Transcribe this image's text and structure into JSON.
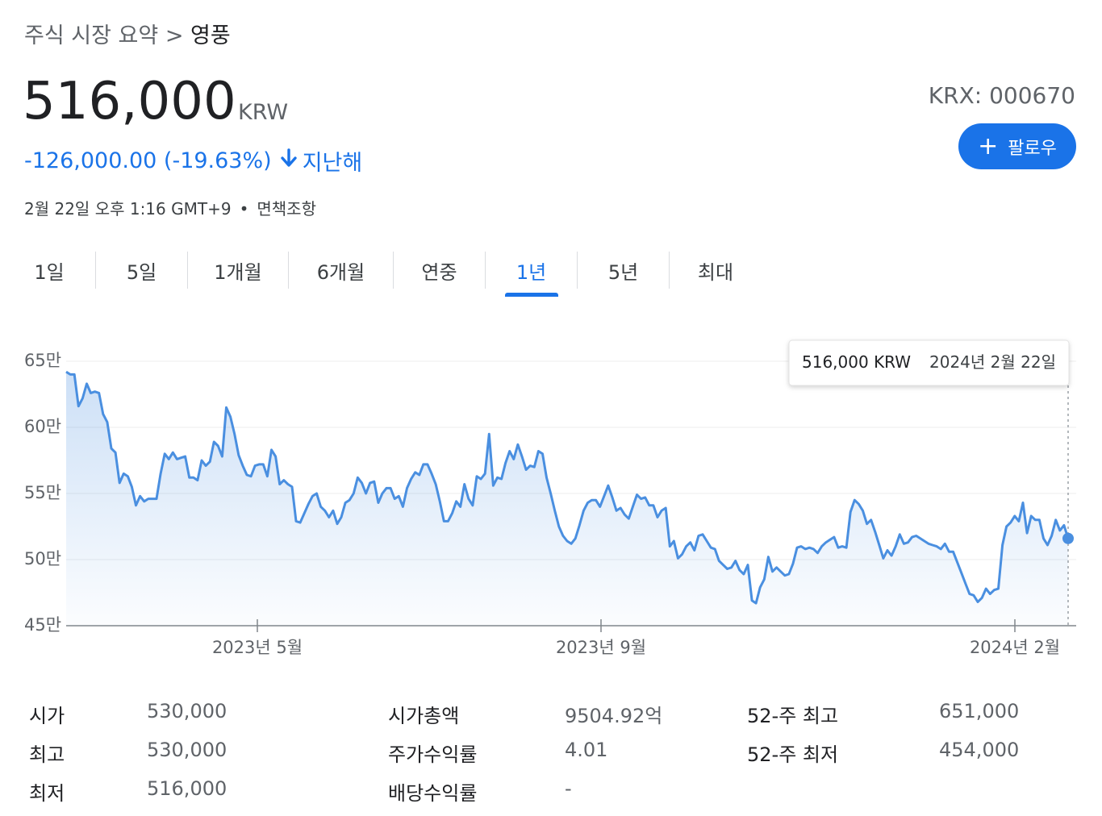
{
  "breadcrumb": {
    "parent": "주식 시장 요약",
    "separator": ">",
    "current": "영풍"
  },
  "quote": {
    "price": "516,000",
    "currency": "KRW",
    "change": "-126,000.00 (-19.63%)",
    "period": "지난해",
    "timestamp": "2월 22일 오후 1:16 GMT+9",
    "disclaimer": "면책조항",
    "exchange": "KRX: 000670"
  },
  "follow": {
    "label": "팔로우"
  },
  "tabs": [
    "1일",
    "5일",
    "1개월",
    "6개월",
    "연중",
    "1년",
    "5년",
    "최대"
  ],
  "active_tab": "1년",
  "colors": {
    "accent": "#1a73e8",
    "line": "#4a8fe0"
  },
  "chart_data": {
    "type": "area",
    "y_ticks": [
      "65만",
      "60만",
      "55만",
      "50만",
      "45만"
    ],
    "ylim": [
      450000,
      650000
    ],
    "x_ticks": [
      "2023년 5월",
      "2023년 9월",
      "2024년 2월"
    ],
    "tooltip": {
      "value": "516,000 KRW",
      "date": "2024년 2월 22일"
    },
    "values": [
      642000,
      640000,
      640000,
      616000,
      622000,
      633000,
      626000,
      627000,
      626000,
      610000,
      604000,
      584000,
      581000,
      558000,
      565000,
      563000,
      555000,
      541000,
      548000,
      544000,
      546000,
      546000,
      546000,
      565000,
      580000,
      576000,
      581000,
      576000,
      577000,
      578000,
      562000,
      562000,
      560000,
      575000,
      571000,
      574000,
      589000,
      586000,
      578000,
      615000,
      608000,
      595000,
      579000,
      571000,
      564000,
      563000,
      571000,
      572000,
      572000,
      563000,
      583000,
      578000,
      557000,
      560000,
      557000,
      555000,
      529000,
      528000,
      535000,
      542000,
      548000,
      550000,
      540000,
      537000,
      532000,
      537000,
      527000,
      532000,
      543000,
      545000,
      550000,
      562000,
      558000,
      550000,
      558000,
      559000,
      543000,
      550000,
      554000,
      554000,
      546000,
      548000,
      540000,
      554000,
      561000,
      566000,
      564000,
      572000,
      572000,
      565000,
      557000,
      544000,
      529000,
      529000,
      535000,
      544000,
      540000,
      557000,
      546000,
      541000,
      563000,
      561000,
      565000,
      595000,
      556000,
      562000,
      561000,
      573000,
      582000,
      576000,
      587000,
      578000,
      568000,
      571000,
      570000,
      582000,
      580000,
      562000,
      550000,
      537000,
      525000,
      518000,
      514000,
      512000,
      516000,
      526000,
      537000,
      543000,
      545000,
      545000,
      540000,
      548000,
      556000,
      547000,
      537000,
      539000,
      534000,
      531000,
      540000,
      549000,
      546000,
      547000,
      541000,
      541000,
      532000,
      537000,
      539000,
      510000,
      514000,
      501000,
      504000,
      510000,
      513000,
      507000,
      518000,
      519000,
      514000,
      509000,
      508000,
      499000,
      496000,
      493000,
      494000,
      499000,
      492000,
      489000,
      496000,
      469000,
      467000,
      479000,
      485000,
      502000,
      491000,
      494000,
      491000,
      488000,
      489000,
      497000,
      509000,
      510000,
      508000,
      509000,
      508000,
      505000,
      510000,
      513000,
      515000,
      517000,
      509000,
      510000,
      509000,
      536000,
      545000,
      542000,
      537000,
      527000,
      530000,
      521000,
      511000,
      501000,
      507000,
      503000,
      510000,
      519000,
      512000,
      513000,
      517000,
      518000,
      516000,
      514000,
      512000,
      511000,
      510000,
      508000,
      512000,
      506000,
      506000,
      498000,
      490000,
      482000,
      474000,
      473000,
      468000,
      471000,
      478000,
      474000,
      477000,
      478000,
      511000,
      525000,
      528000,
      533000,
      529000,
      543000,
      520000,
      533000,
      530000,
      530000,
      516000,
      511000,
      518000,
      530000,
      522000,
      526000,
      516000
    ]
  },
  "stats": [
    {
      "label": "시가",
      "value": "530,000"
    },
    {
      "label": "최고",
      "value": "530,000"
    },
    {
      "label": "최저",
      "value": "516,000"
    },
    {
      "label": "시가총액",
      "value": "9504.92억"
    },
    {
      "label": "주가수익률",
      "value": "4.01"
    },
    {
      "label": "배당수익률",
      "value": "-"
    },
    {
      "label": "52-주 최고",
      "value": "651,000"
    },
    {
      "label": "52-주 최저",
      "value": "454,000"
    }
  ]
}
